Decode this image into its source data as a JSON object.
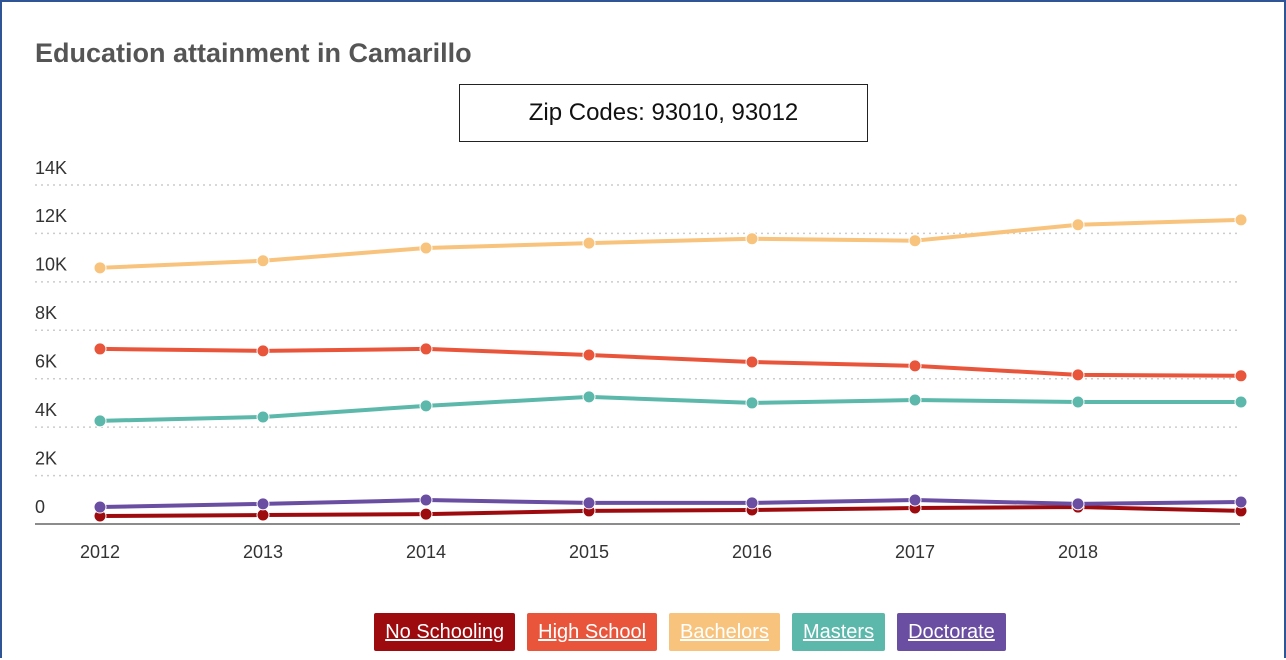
{
  "chart_data": {
    "type": "line",
    "title": "Education attainment in Camarillo",
    "subtitle": "Zip Codes: 93010, 93012",
    "categories": [
      "2012",
      "2013",
      "2014",
      "2015",
      "2016",
      "2017",
      "2018",
      null
    ],
    "series": [
      {
        "name": "No Schooling",
        "color": "#9e0b0f",
        "values": [
          330,
          370,
          410,
          540,
          580,
          660,
          700,
          540
        ]
      },
      {
        "name": "High School",
        "color": "#e9553b",
        "values": [
          7230,
          7150,
          7230,
          6980,
          6690,
          6530,
          6160,
          6120
        ]
      },
      {
        "name": "Bachelors",
        "color": "#f8c37c",
        "values": [
          10580,
          10870,
          11400,
          11600,
          11780,
          11700,
          12360,
          12560
        ]
      },
      {
        "name": "Masters",
        "color": "#5cb8ab",
        "values": [
          4260,
          4420,
          4880,
          5250,
          5000,
          5120,
          5040,
          5040
        ]
      },
      {
        "name": "Doctorate",
        "color": "#6a4ea2",
        "values": [
          700,
          830,
          990,
          870,
          870,
          990,
          830,
          910
        ]
      }
    ],
    "ylim": [
      0,
      14000
    ],
    "yticks": [
      0,
      {
        "value": 2000,
        "label": "2K"
      },
      {
        "value": 4000,
        "label": "4K"
      },
      {
        "value": 6000,
        "label": "6K"
      },
      {
        "value": 8000,
        "label": "8K"
      },
      {
        "value": 10000,
        "label": "10K"
      },
      {
        "value": 12000,
        "label": "12K"
      },
      {
        "value": 14000,
        "label": "14K"
      }
    ],
    "grid": true
  }
}
